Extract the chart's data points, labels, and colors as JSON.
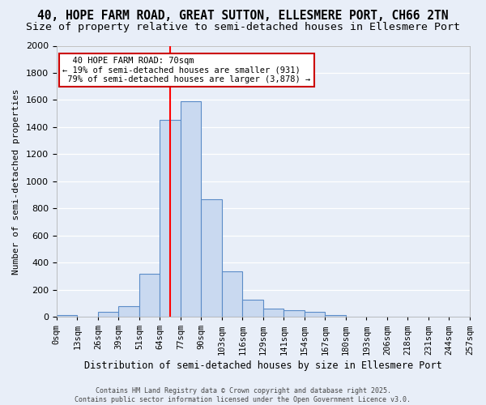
{
  "title1": "40, HOPE FARM ROAD, GREAT SUTTON, ELLESMERE PORT, CH66 2TN",
  "title2": "Size of property relative to semi-detached houses in Ellesmere Port",
  "xlabel": "Distribution of semi-detached houses by size in Ellesmere Port",
  "ylabel": "Number of semi-detached properties",
  "footer1": "Contains HM Land Registry data © Crown copyright and database right 2025.",
  "footer2": "Contains public sector information licensed under the Open Government Licence v3.0.",
  "bin_labels": [
    "0sqm",
    "13sqm",
    "26sqm",
    "39sqm",
    "51sqm",
    "64sqm",
    "77sqm",
    "90sqm",
    "103sqm",
    "116sqm",
    "129sqm",
    "141sqm",
    "154sqm",
    "167sqm",
    "180sqm",
    "193sqm",
    "206sqm",
    "218sqm",
    "231sqm",
    "244sqm",
    "257sqm"
  ],
  "bar_values": [
    15,
    0,
    35,
    75,
    315,
    1450,
    1590,
    865,
    335,
    125,
    60,
    50,
    35,
    15,
    0,
    0,
    0,
    0,
    0,
    0
  ],
  "bar_color": "#c9d9f0",
  "bar_edge_color": "#5b8cc8",
  "red_line_x": 5.5,
  "property_label": "40 HOPE FARM ROAD: 70sqm",
  "smaller_pct": "19%",
  "smaller_n": "931",
  "larger_pct": "79%",
  "larger_n": "3,878",
  "annotation_box_color": "#ffffff",
  "annotation_box_edge": "#cc0000",
  "ylim": [
    0,
    2000
  ],
  "yticks": [
    0,
    200,
    400,
    600,
    800,
    1000,
    1200,
    1400,
    1600,
    1800,
    2000
  ],
  "bg_color": "#e8eef8",
  "grid_color": "#ffffff",
  "title_fontsize": 10.5,
  "subtitle_fontsize": 9.5
}
